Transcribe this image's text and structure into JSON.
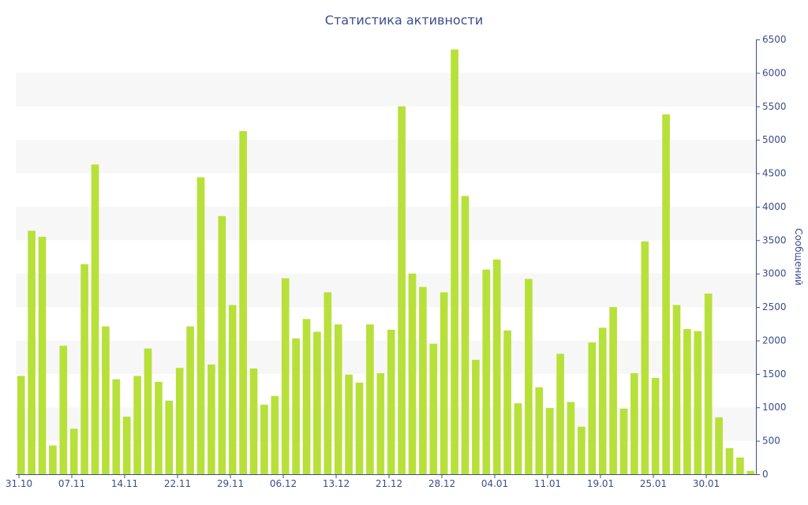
{
  "chart_data": {
    "type": "bar",
    "title": "Статистика активности",
    "xlabel": "",
    "ylabel": "Сообщений",
    "ylim": [
      0,
      6500
    ],
    "yticks": [
      0,
      500,
      1000,
      1500,
      2000,
      2500,
      3000,
      3500,
      4000,
      4500,
      5000,
      5500,
      6000,
      6500
    ],
    "y_axis_side": "right",
    "grid": "alternating horizontal bands",
    "x_tick_labels": [
      {
        "index": 0,
        "label": "31.10"
      },
      {
        "index": 5,
        "label": "07.11"
      },
      {
        "index": 10,
        "label": "14.11"
      },
      {
        "index": 15,
        "label": "22.11"
      },
      {
        "index": 20,
        "label": "29.11"
      },
      {
        "index": 25,
        "label": "06.12"
      },
      {
        "index": 30,
        "label": "13.12"
      },
      {
        "index": 35,
        "label": "21.12"
      },
      {
        "index": 40,
        "label": "28.12"
      },
      {
        "index": 45,
        "label": "04.01"
      },
      {
        "index": 50,
        "label": "11.01"
      },
      {
        "index": 55,
        "label": "19.01"
      },
      {
        "index": 60,
        "label": "25.01"
      },
      {
        "index": 65,
        "label": "30.01"
      }
    ],
    "values": [
      1470,
      3640,
      3550,
      430,
      1920,
      680,
      3140,
      4630,
      2210,
      1420,
      860,
      1470,
      1880,
      1380,
      1100,
      1590,
      2210,
      4440,
      1640,
      3860,
      2530,
      5130,
      1580,
      1040,
      1170,
      2930,
      2030,
      2320,
      2130,
      2720,
      2240,
      1490,
      1370,
      2240,
      1510,
      2160,
      5500,
      3000,
      2800,
      1950,
      2720,
      6350,
      4160,
      1710,
      3060,
      3210,
      2150,
      1060,
      2920,
      1300,
      990,
      1800,
      1080,
      710,
      1970,
      2190,
      2500,
      980,
      1510,
      3480,
      1440,
      5380,
      2530,
      2170,
      2140,
      2700,
      850,
      390,
      250,
      50
    ],
    "colors": {
      "bar": "#b8e03a",
      "band": "#f7f7f7",
      "axis": "#3b4d8c",
      "text": "#3b4d8c"
    }
  }
}
